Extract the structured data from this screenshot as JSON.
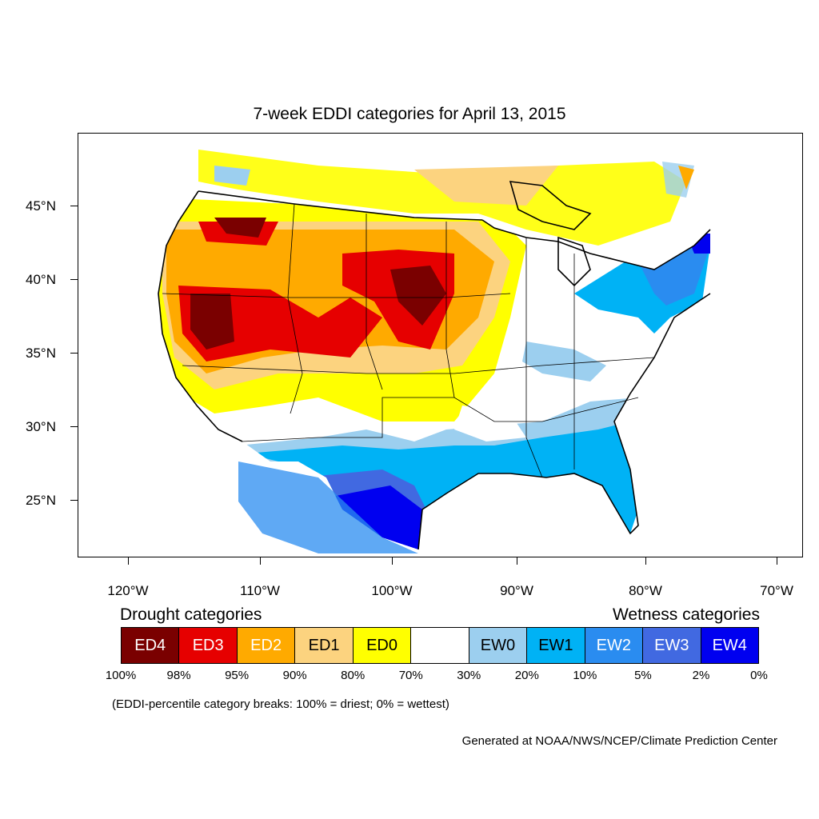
{
  "title": "7-week EDDI categories for April 13, 2015",
  "axes": {
    "lat_labels": [
      "45°N",
      "40°N",
      "35°N",
      "30°N",
      "25°N"
    ],
    "lon_labels": [
      "120°W",
      "110°W",
      "100°W",
      "90°W",
      "80°W",
      "70°W"
    ]
  },
  "legend": {
    "drought_title": "Drought categories",
    "wetness_title": "Wetness categories",
    "categories": [
      {
        "label": "ED4",
        "color": "#7a0000",
        "text_color": "#ffffff"
      },
      {
        "label": "ED3",
        "color": "#e60000",
        "text_color": "#ffffff"
      },
      {
        "label": "ED2",
        "color": "#ffaa00",
        "text_color": "#ffffff"
      },
      {
        "label": "ED1",
        "color": "#fcd37f",
        "text_color": "#000000"
      },
      {
        "label": "ED0",
        "color": "#ffff00",
        "text_color": "#000000"
      },
      {
        "label": "",
        "color": "#ffffff",
        "text_color": "#000000"
      },
      {
        "label": "EW0",
        "color": "#9ccfef",
        "text_color": "#000000"
      },
      {
        "label": "EW1",
        "color": "#00b2f5",
        "text_color": "#000000"
      },
      {
        "label": "EW2",
        "color": "#2a8cf0",
        "text_color": "#ffffff"
      },
      {
        "label": "EW3",
        "color": "#4169e1",
        "text_color": "#ffffff"
      },
      {
        "label": "EW4",
        "color": "#0000f0",
        "text_color": "#ffffff"
      }
    ],
    "breaks": [
      "100%",
      "98%",
      "95%",
      "90%",
      "80%",
      "70%",
      "30%",
      "20%",
      "10%",
      "5%",
      "2%",
      "0%"
    ]
  },
  "note": "(EDDI-percentile category breaks: 100% = driest; 0% = wettest)",
  "credit": "Generated at NOAA/NWS/NCEP/Climate Prediction Center"
}
